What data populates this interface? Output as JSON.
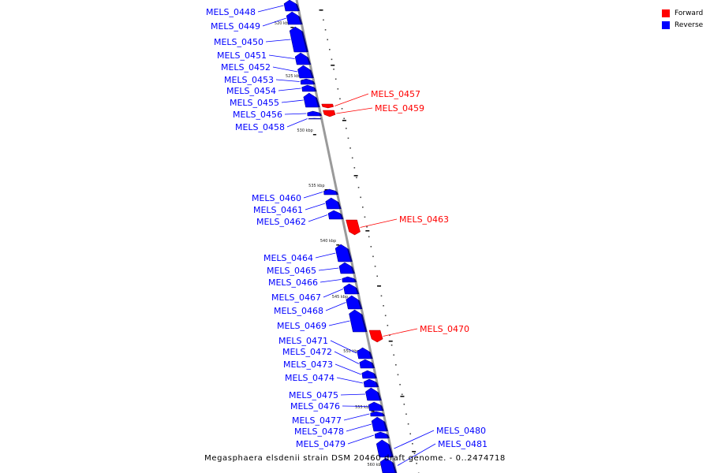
{
  "caption": "Megasphaera elsdenii strain DSM 20460 draft genome. - 0..2474718",
  "legend": [
    {
      "label": "Forward",
      "color": "#ff0000"
    },
    {
      "label": "Reverse",
      "color": "#0000ff"
    }
  ],
  "colors": {
    "forward": "#ff0000",
    "reverse": "#0000ff",
    "backbone": "#9a9a9a"
  },
  "scale_ticks": [
    "520 kbp",
    "525 kbp",
    "530 kbp",
    "535 kbp",
    "540 kbp",
    "545 kbp",
    "550 kbp",
    "555 kbp",
    "560 kbp"
  ],
  "genes": [
    {
      "name": "MELS_0448",
      "strand": "reverse"
    },
    {
      "name": "MELS_0449",
      "strand": "reverse"
    },
    {
      "name": "MELS_0450",
      "strand": "reverse"
    },
    {
      "name": "MELS_0451",
      "strand": "reverse"
    },
    {
      "name": "MELS_0452",
      "strand": "reverse"
    },
    {
      "name": "MELS_0453",
      "strand": "reverse"
    },
    {
      "name": "MELS_0454",
      "strand": "reverse"
    },
    {
      "name": "MELS_0455",
      "strand": "reverse"
    },
    {
      "name": "MELS_0456",
      "strand": "reverse"
    },
    {
      "name": "MELS_0458",
      "strand": "reverse"
    },
    {
      "name": "MELS_0457",
      "strand": "forward"
    },
    {
      "name": "MELS_0459",
      "strand": "forward"
    },
    {
      "name": "MELS_0460",
      "strand": "reverse"
    },
    {
      "name": "MELS_0461",
      "strand": "reverse"
    },
    {
      "name": "MELS_0462",
      "strand": "reverse"
    },
    {
      "name": "MELS_0463",
      "strand": "forward"
    },
    {
      "name": "MELS_0464",
      "strand": "reverse"
    },
    {
      "name": "MELS_0465",
      "strand": "reverse"
    },
    {
      "name": "MELS_0466",
      "strand": "reverse"
    },
    {
      "name": "MELS_0467",
      "strand": "reverse"
    },
    {
      "name": "MELS_0468",
      "strand": "reverse"
    },
    {
      "name": "MELS_0469",
      "strand": "reverse"
    },
    {
      "name": "MELS_0470",
      "strand": "forward"
    },
    {
      "name": "MELS_0471",
      "strand": "reverse"
    },
    {
      "name": "MELS_0472",
      "strand": "reverse"
    },
    {
      "name": "MELS_0473",
      "strand": "reverse"
    },
    {
      "name": "MELS_0474",
      "strand": "reverse"
    },
    {
      "name": "MELS_0475",
      "strand": "reverse"
    },
    {
      "name": "MELS_0476",
      "strand": "reverse"
    },
    {
      "name": "MELS_0477",
      "strand": "reverse"
    },
    {
      "name": "MELS_0478",
      "strand": "reverse"
    },
    {
      "name": "MELS_0479",
      "strand": "reverse"
    },
    {
      "name": "MELS_0480",
      "strand": "reverse"
    },
    {
      "name": "MELS_0481",
      "strand": "reverse"
    }
  ]
}
